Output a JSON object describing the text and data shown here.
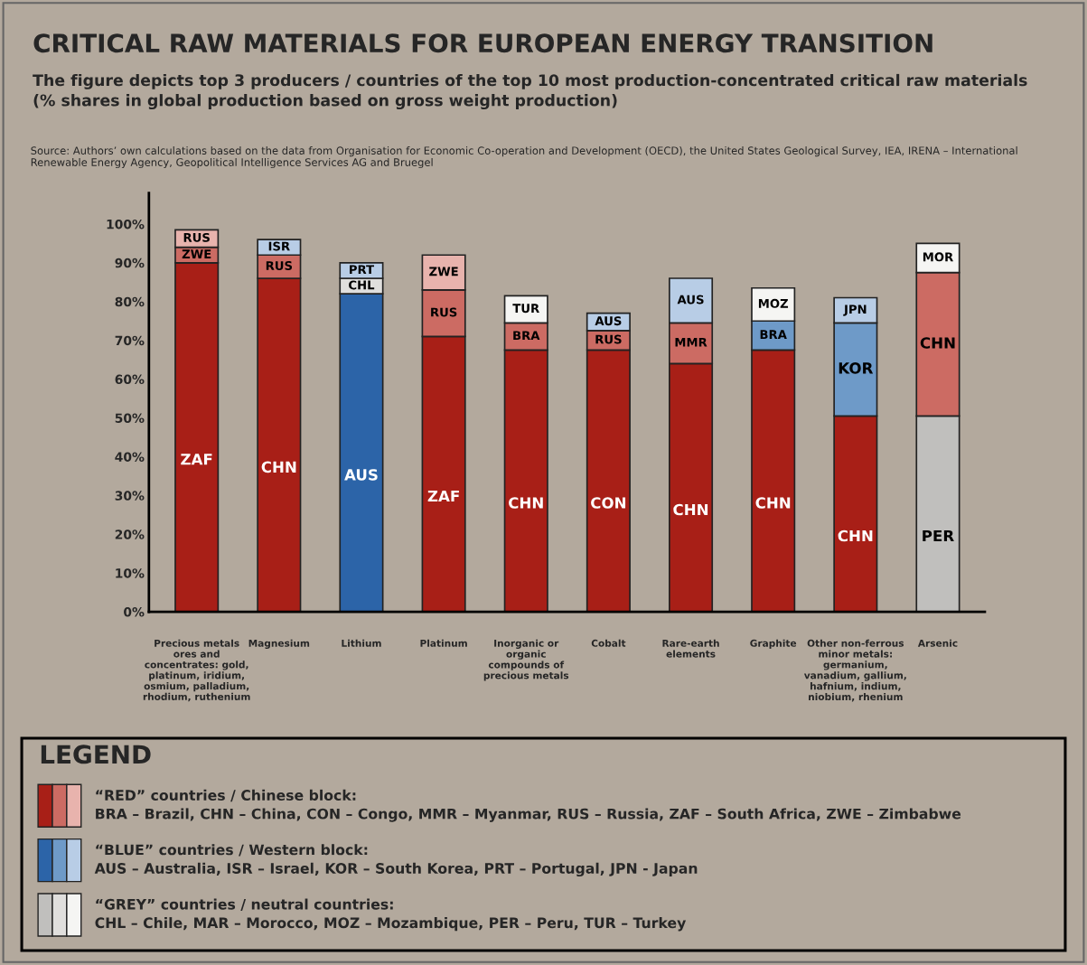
{
  "chart_data": {
    "type": "bar",
    "stacked": true,
    "title": "CRITICAL RAW MATERIALS FOR EUROPEAN ENERGY TRANSITION",
    "subtitle": "The figure depicts top 3 producers / countries of the top 10 most production-concentrated critical raw materials\n(% shares in global production based on gross weight production)",
    "categories": [
      "Precious metals\nores and\nconcentrates: gold,\nplatinum, iridium,\nosmium, palladium,\nrhodium, ruthenium",
      "Magnesium",
      "Lithium",
      "Platinum",
      "Inorganic or\norganic\ncompounds of\nprecious metals",
      "Cobalt",
      "Rare-earth\nelements",
      "Graphite",
      "Other non-ferrous\nminor metals:\ngermanium,\nvanadium, gallium,\nhafnium, indium,\nniobium, rhenium",
      "Arsenic"
    ],
    "series": [
      {
        "values": [
          90,
          86,
          82,
          71,
          67.5,
          67.5,
          64,
          67.5,
          50.5,
          50.5
        ],
        "colors": [
          "#a81f17",
          "#a81f17",
          "#2c64a8",
          "#a81f17",
          "#a81f17",
          "#a81f17",
          "#a81f17",
          "#a81f17",
          "#a81f17",
          "#c0bfbd"
        ],
        "value_labels": [
          "ZAF",
          "CHN",
          "AUS",
          "ZAF",
          "CHN",
          "CON",
          "CHN",
          "CHN",
          "CHN",
          "PER"
        ]
      },
      {
        "values": [
          4,
          6,
          4,
          12,
          7,
          5,
          10.5,
          7.5,
          24,
          37
        ],
        "colors": [
          "#cc6b63",
          "#cc6b63",
          "#e0dfdd",
          "#cc6b63",
          "#cc6b63",
          "#cc6b63",
          "#cc6b63",
          "#6e9ac8",
          "#6e9ac8",
          "#cc6b63"
        ],
        "value_labels": [
          "ZWE",
          "RUS",
          "CHL",
          "RUS",
          "BRA",
          "RUS",
          "MMR",
          "BRA",
          "KOR",
          "CHN"
        ]
      },
      {
        "values": [
          4.5,
          4,
          4,
          9,
          7,
          4.5,
          11.5,
          8.5,
          6.5,
          7.5
        ],
        "colors": [
          "#e8b3ad",
          "#b8cde6",
          "#b8cde6",
          "#e8b3ad",
          "#f5f5f3",
          "#b8cde6",
          "#b8cde6",
          "#f5f5f3",
          "#b8cde6",
          "#f5f5f3"
        ],
        "value_labels": [
          "RUS",
          "ISR",
          "PRT",
          "ZWE",
          "TUR",
          "AUS",
          "AUS",
          "MOZ",
          "JPN",
          "MOR"
        ]
      }
    ],
    "ylim": [
      0,
      108
    ],
    "yticks": [
      {
        "value": 0,
        "label": "0%"
      },
      {
        "value": 10,
        "label": "10%"
      },
      {
        "value": 20,
        "label": "20%"
      },
      {
        "value": 30,
        "label": "30%"
      },
      {
        "value": 40,
        "label": "40%"
      },
      {
        "value": 50,
        "label": "50%"
      },
      {
        "value": 60,
        "label": "60%"
      },
      {
        "value": 70,
        "label": "70%"
      },
      {
        "value": 80,
        "label": "80%"
      },
      {
        "value": 90,
        "label": "90%"
      },
      {
        "value": 100,
        "label": "100%"
      }
    ],
    "grid": false,
    "annotations": [
      "Source: Authors’ own calculations based on the data from Organisation for Economic Co-operation and Development (OECD), the United States Geological Survey, IEA, IRENA – International\nRenewable Energy Agency, Geopolitical Intelligence Services AG and Bruegel",
      "LEGEND",
      "“RED” countries / Chinese block:\nBRA – Brazil, CHN – China, CON – Congo, MMR – Myanmar, RUS – Russia, ZAF – South Africa, ZWE – Zimbabwe",
      "“BLUE” countries / Western block:\nAUS – Australia, ISR – Israel, KOR – South Korea, PRT – Portugal, JPN - Japan",
      "“GREY” countries / neutral countries:\nCHL – Chile, MAR – Morocco, MOZ – Mozambique, PER – Peru, TUR – Turkey"
    ]
  }
}
